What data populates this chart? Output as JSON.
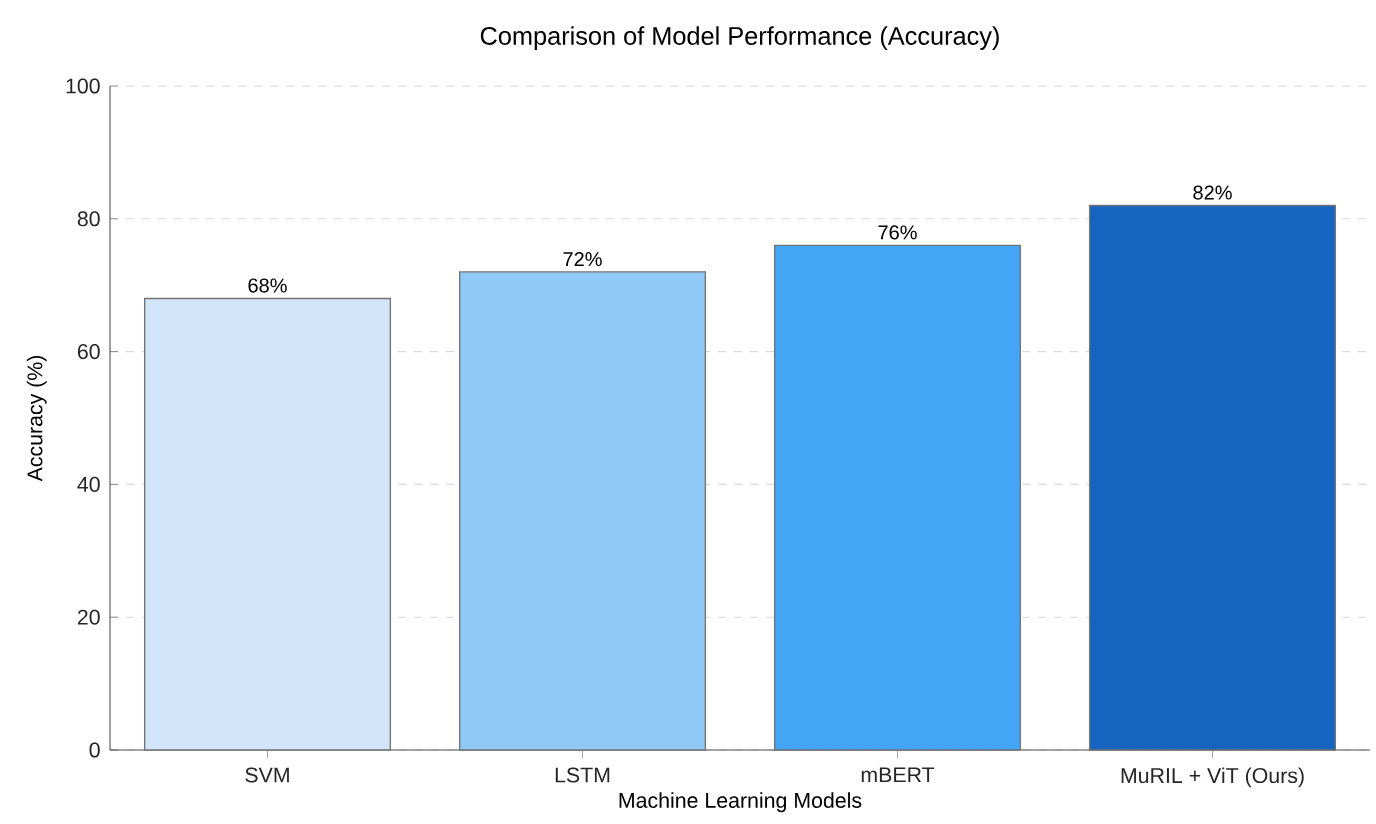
{
  "chart_data": {
    "type": "bar",
    "title": "Comparison of Model Performance (Accuracy)",
    "xlabel": "Machine Learning Models",
    "ylabel": "Accuracy (%)",
    "categories": [
      "SVM",
      "LSTM",
      "mBERT",
      "MuRIL + ViT (Ours)"
    ],
    "values": [
      68,
      72,
      76,
      82
    ],
    "value_labels": [
      "68%",
      "72%",
      "76%",
      "82%"
    ],
    "colors": [
      "#d3e5fb",
      "#90c8f6",
      "#42a5f5",
      "#1565c0"
    ],
    "ylim": [
      0,
      100
    ],
    "yticks": [
      0,
      20,
      40,
      60,
      80,
      100
    ],
    "grid": "y"
  }
}
